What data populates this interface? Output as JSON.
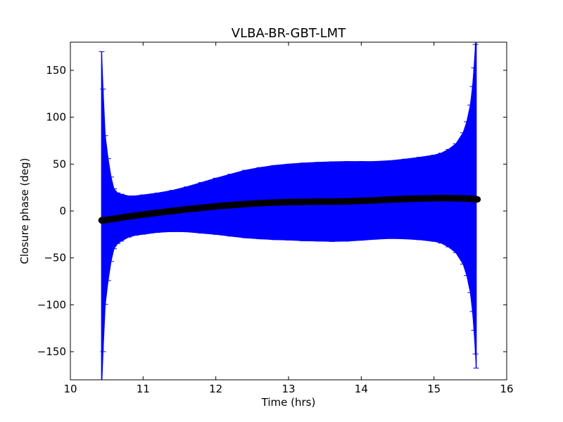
{
  "chart_data": {
    "type": "scatter",
    "title": "VLBA-BR-GBT-LMT",
    "xlabel": "Time (hrs)",
    "ylabel": "Closure phase (deg)",
    "xlim": [
      10,
      16
    ],
    "ylim": [
      -180,
      180
    ],
    "xticks": [
      10,
      11,
      12,
      13,
      14,
      15,
      16
    ],
    "yticks": [
      -150,
      -100,
      -50,
      0,
      50,
      100,
      150
    ],
    "xtick_labels": [
      "10",
      "11",
      "12",
      "13",
      "14",
      "15",
      "16"
    ],
    "ytick_labels": [
      "−150",
      "−100",
      "−50",
      "0",
      "50",
      "100",
      "150"
    ],
    "grid": false,
    "series": [
      {
        "marker": "circle",
        "color": "#000000",
        "error_color": "#0000ff",
        "points": [
          {
            "x": 10.43,
            "y": -10,
            "err": 180
          },
          {
            "x": 10.45,
            "y": -10,
            "err": 140
          },
          {
            "x": 10.48,
            "y": -9.6,
            "err": 90
          },
          {
            "x": 10.52,
            "y": -9.2,
            "err": 65
          },
          {
            "x": 10.56,
            "y": -8.8,
            "err": 45
          },
          {
            "x": 10.6,
            "y": -8.3,
            "err": 32
          },
          {
            "x": 10.65,
            "y": -7.7,
            "err": 27
          },
          {
            "x": 10.7,
            "y": -7.1,
            "err": 25
          },
          {
            "x": 10.8,
            "y": -5.9,
            "err": 22
          },
          {
            "x": 10.9,
            "y": -4.8,
            "err": 21
          },
          {
            "x": 11.0,
            "y": -3.8,
            "err": 21
          },
          {
            "x": 11.2,
            "y": -1.8,
            "err": 21
          },
          {
            "x": 11.4,
            "y": 0,
            "err": 22
          },
          {
            "x": 11.6,
            "y": 1.8,
            "err": 24
          },
          {
            "x": 11.8,
            "y": 3.4,
            "err": 27
          },
          {
            "x": 12.0,
            "y": 5,
            "err": 30
          },
          {
            "x": 12.2,
            "y": 6.2,
            "err": 33
          },
          {
            "x": 12.4,
            "y": 7.4,
            "err": 36
          },
          {
            "x": 12.6,
            "y": 8.3,
            "err": 38
          },
          {
            "x": 12.8,
            "y": 9,
            "err": 39.5
          },
          {
            "x": 13.0,
            "y": 9.5,
            "err": 40.5
          },
          {
            "x": 13.2,
            "y": 9.7,
            "err": 41.5
          },
          {
            "x": 13.4,
            "y": 9.9,
            "err": 42
          },
          {
            "x": 13.6,
            "y": 10,
            "err": 42.5
          },
          {
            "x": 13.8,
            "y": 10.3,
            "err": 42.5
          },
          {
            "x": 14.0,
            "y": 10.8,
            "err": 42
          },
          {
            "x": 14.2,
            "y": 11.4,
            "err": 41.5
          },
          {
            "x": 14.4,
            "y": 12.2,
            "err": 41.5
          },
          {
            "x": 14.6,
            "y": 12.8,
            "err": 42.5
          },
          {
            "x": 14.8,
            "y": 13.3,
            "err": 44
          },
          {
            "x": 15.0,
            "y": 13.6,
            "err": 46
          },
          {
            "x": 15.1,
            "y": 13.7,
            "err": 48
          },
          {
            "x": 15.2,
            "y": 13.7,
            "err": 52
          },
          {
            "x": 15.3,
            "y": 13.6,
            "err": 58
          },
          {
            "x": 15.4,
            "y": 13.4,
            "err": 70
          },
          {
            "x": 15.45,
            "y": 13.2,
            "err": 82
          },
          {
            "x": 15.5,
            "y": 13,
            "err": 100
          },
          {
            "x": 15.53,
            "y": 12.8,
            "err": 120
          },
          {
            "x": 15.55,
            "y": 12.7,
            "err": 140
          },
          {
            "x": 15.57,
            "y": 12.6,
            "err": 165
          },
          {
            "x": 15.58,
            "y": 12.5,
            "err": 180
          },
          {
            "x": 15.6,
            "y": 12.4,
            "err": 0
          }
        ]
      }
    ]
  }
}
